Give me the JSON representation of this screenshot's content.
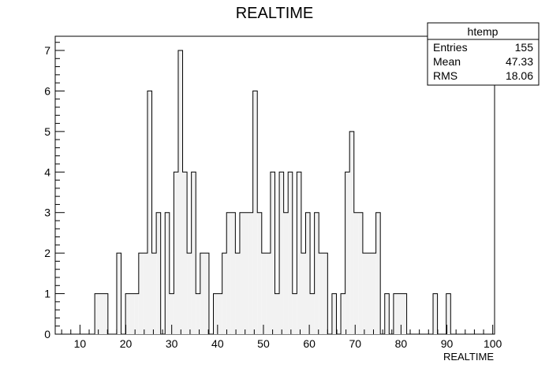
{
  "chart_data": {
    "type": "bar",
    "title": "REALTIME",
    "xlabel": "REALTIME",
    "ylabel": "",
    "xlim": [
      4.6,
      100.4
    ],
    "ylim": [
      0,
      7.35
    ],
    "grid": false,
    "fill_color": "#f2f2f2",
    "line_color": "#000000",
    "x_ticks": [
      10,
      20,
      30,
      40,
      50,
      60,
      70,
      80,
      90,
      100
    ],
    "y_ticks": [
      0,
      1,
      2,
      3,
      4,
      5,
      6,
      7
    ],
    "bin_start": 4.6,
    "bin_width": 0.958,
    "counts": [
      0,
      0,
      0,
      0,
      0,
      0,
      0,
      0,
      0,
      1,
      1,
      1,
      0,
      0,
      2,
      0,
      1,
      1,
      1,
      2,
      2,
      6,
      2,
      3,
      0,
      3,
      1,
      4,
      7,
      4,
      2,
      4,
      1,
      2,
      2,
      0,
      1,
      1,
      2,
      3,
      3,
      2,
      3,
      3,
      3,
      6,
      3,
      2,
      2,
      4,
      1,
      4,
      3,
      4,
      1,
      4,
      2,
      3,
      1,
      3,
      2,
      2,
      0,
      1,
      0,
      1,
      4,
      5,
      3,
      3,
      2,
      2,
      2,
      3,
      0,
      1,
      0,
      1,
      1,
      1,
      0,
      0,
      0,
      0,
      0,
      0,
      1,
      0,
      0,
      1,
      0,
      0,
      0,
      0,
      0,
      0,
      0,
      0,
      0,
      0
    ],
    "stats": {
      "name": "htemp",
      "rows": [
        {
          "label": "Entries",
          "value": "155"
        },
        {
          "label": "Mean",
          "value": "47.33"
        },
        {
          "label": "RMS",
          "value": "18.06"
        }
      ]
    }
  }
}
